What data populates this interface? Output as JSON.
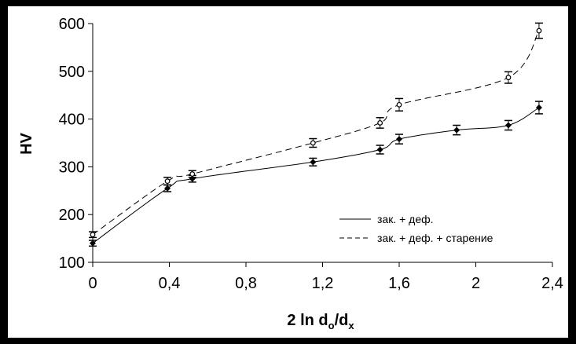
{
  "chart_data": {
    "type": "line",
    "xlabel": "2 ln do/dx",
    "ylabel": "HV",
    "xlim": [
      0,
      2.4
    ],
    "ylim": [
      100,
      600
    ],
    "x_ticks": [
      "0",
      "0,4",
      "0,8",
      "1,2",
      "1,6",
      "2",
      "2,4"
    ],
    "x_tick_values": [
      0,
      0.4,
      0.8,
      1.2,
      1.6,
      2.0,
      2.4
    ],
    "y_ticks": [
      "100",
      "200",
      "300",
      "400",
      "500",
      "600"
    ],
    "y_tick_values": [
      100,
      200,
      300,
      400,
      500,
      600
    ],
    "grid": false,
    "legend_position": "bottom-right",
    "series": [
      {
        "name": "зак. + деф.",
        "line": "solid",
        "marker": "diamond",
        "x": [
          0,
          0.39,
          0.52,
          1.15,
          1.5,
          1.6,
          1.9,
          2.17,
          2.33
        ],
        "y": [
          140,
          255,
          275,
          310,
          336,
          358,
          377,
          387,
          424
        ],
        "error": [
          6,
          7,
          7,
          8,
          9,
          10,
          10,
          10,
          13
        ]
      },
      {
        "name": "зак. + деф. + старение",
        "line": "dashed",
        "marker": "circle",
        "x": [
          0,
          0.39,
          0.52,
          1.15,
          1.5,
          1.6,
          2.17,
          2.33
        ],
        "y": [
          158,
          270,
          285,
          350,
          392,
          430,
          487,
          585
        ],
        "error": [
          6,
          8,
          7,
          9,
          11,
          13,
          12,
          16
        ]
      }
    ]
  }
}
